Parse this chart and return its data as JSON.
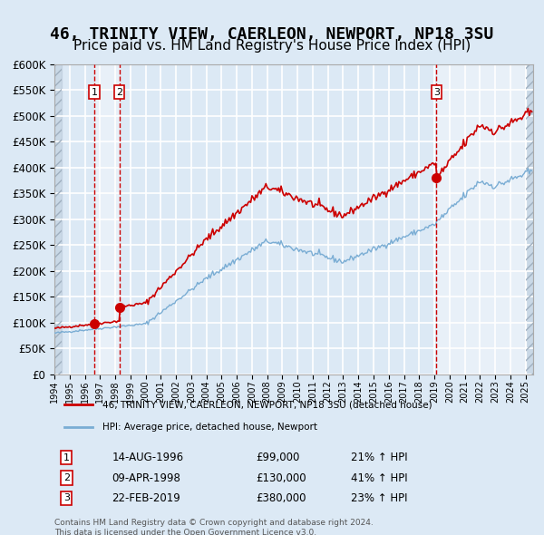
{
  "title": "46, TRINITY VIEW, CAERLEON, NEWPORT, NP18 3SU",
  "subtitle": "Price paid vs. HM Land Registry's House Price Index (HPI)",
  "title_fontsize": 13,
  "subtitle_fontsize": 11,
  "background_color": "#dce9f5",
  "plot_bg_color": "#dce9f5",
  "hatch_color": "#c0cfe0",
  "grid_color": "#ffffff",
  "sale_color": "#cc0000",
  "hpi_color": "#7aadd4",
  "sale_dot_color": "#cc0000",
  "vline_color": "#cc0000",
  "highlight_bg": "#e8f0f8",
  "ylim": [
    0,
    600000
  ],
  "yticks": [
    0,
    50000,
    100000,
    150000,
    200000,
    250000,
    300000,
    350000,
    400000,
    450000,
    500000,
    550000,
    600000
  ],
  "xmin_year": 1994.0,
  "xmax_year": 2025.5,
  "xtick_years": [
    1994,
    1995,
    1996,
    1997,
    1998,
    1999,
    2000,
    2001,
    2002,
    2003,
    2004,
    2005,
    2006,
    2007,
    2008,
    2009,
    2010,
    2011,
    2012,
    2013,
    2014,
    2015,
    2016,
    2017,
    2018,
    2019,
    2020,
    2021,
    2022,
    2023,
    2024,
    2025
  ],
  "sales": [
    {
      "year": 1996.62,
      "price": 99000,
      "label": "1"
    },
    {
      "year": 1998.27,
      "price": 130000,
      "label": "2"
    },
    {
      "year": 2019.13,
      "price": 380000,
      "label": "3"
    }
  ],
  "legend_sale_label": "46, TRINITY VIEW, CAERLEON, NEWPORT, NP18 3SU (detached house)",
  "legend_hpi_label": "HPI: Average price, detached house, Newport",
  "table_rows": [
    {
      "num": "1",
      "date": "14-AUG-1996",
      "price": "£99,000",
      "change": "21% ↑ HPI"
    },
    {
      "num": "2",
      "date": "09-APR-1998",
      "price": "£130,000",
      "change": "41% ↑ HPI"
    },
    {
      "num": "3",
      "date": "22-FEB-2019",
      "price": "£380,000",
      "change": "23% ↑ HPI"
    }
  ],
  "footnote": "Contains HM Land Registry data © Crown copyright and database right 2024.\nThis data is licensed under the Open Government Licence v3.0.",
  "highlight_regions": [
    {
      "xstart": 1996.62,
      "xend": 1998.27
    },
    {
      "xstart": 2019.13,
      "xend": 2025.5
    }
  ]
}
